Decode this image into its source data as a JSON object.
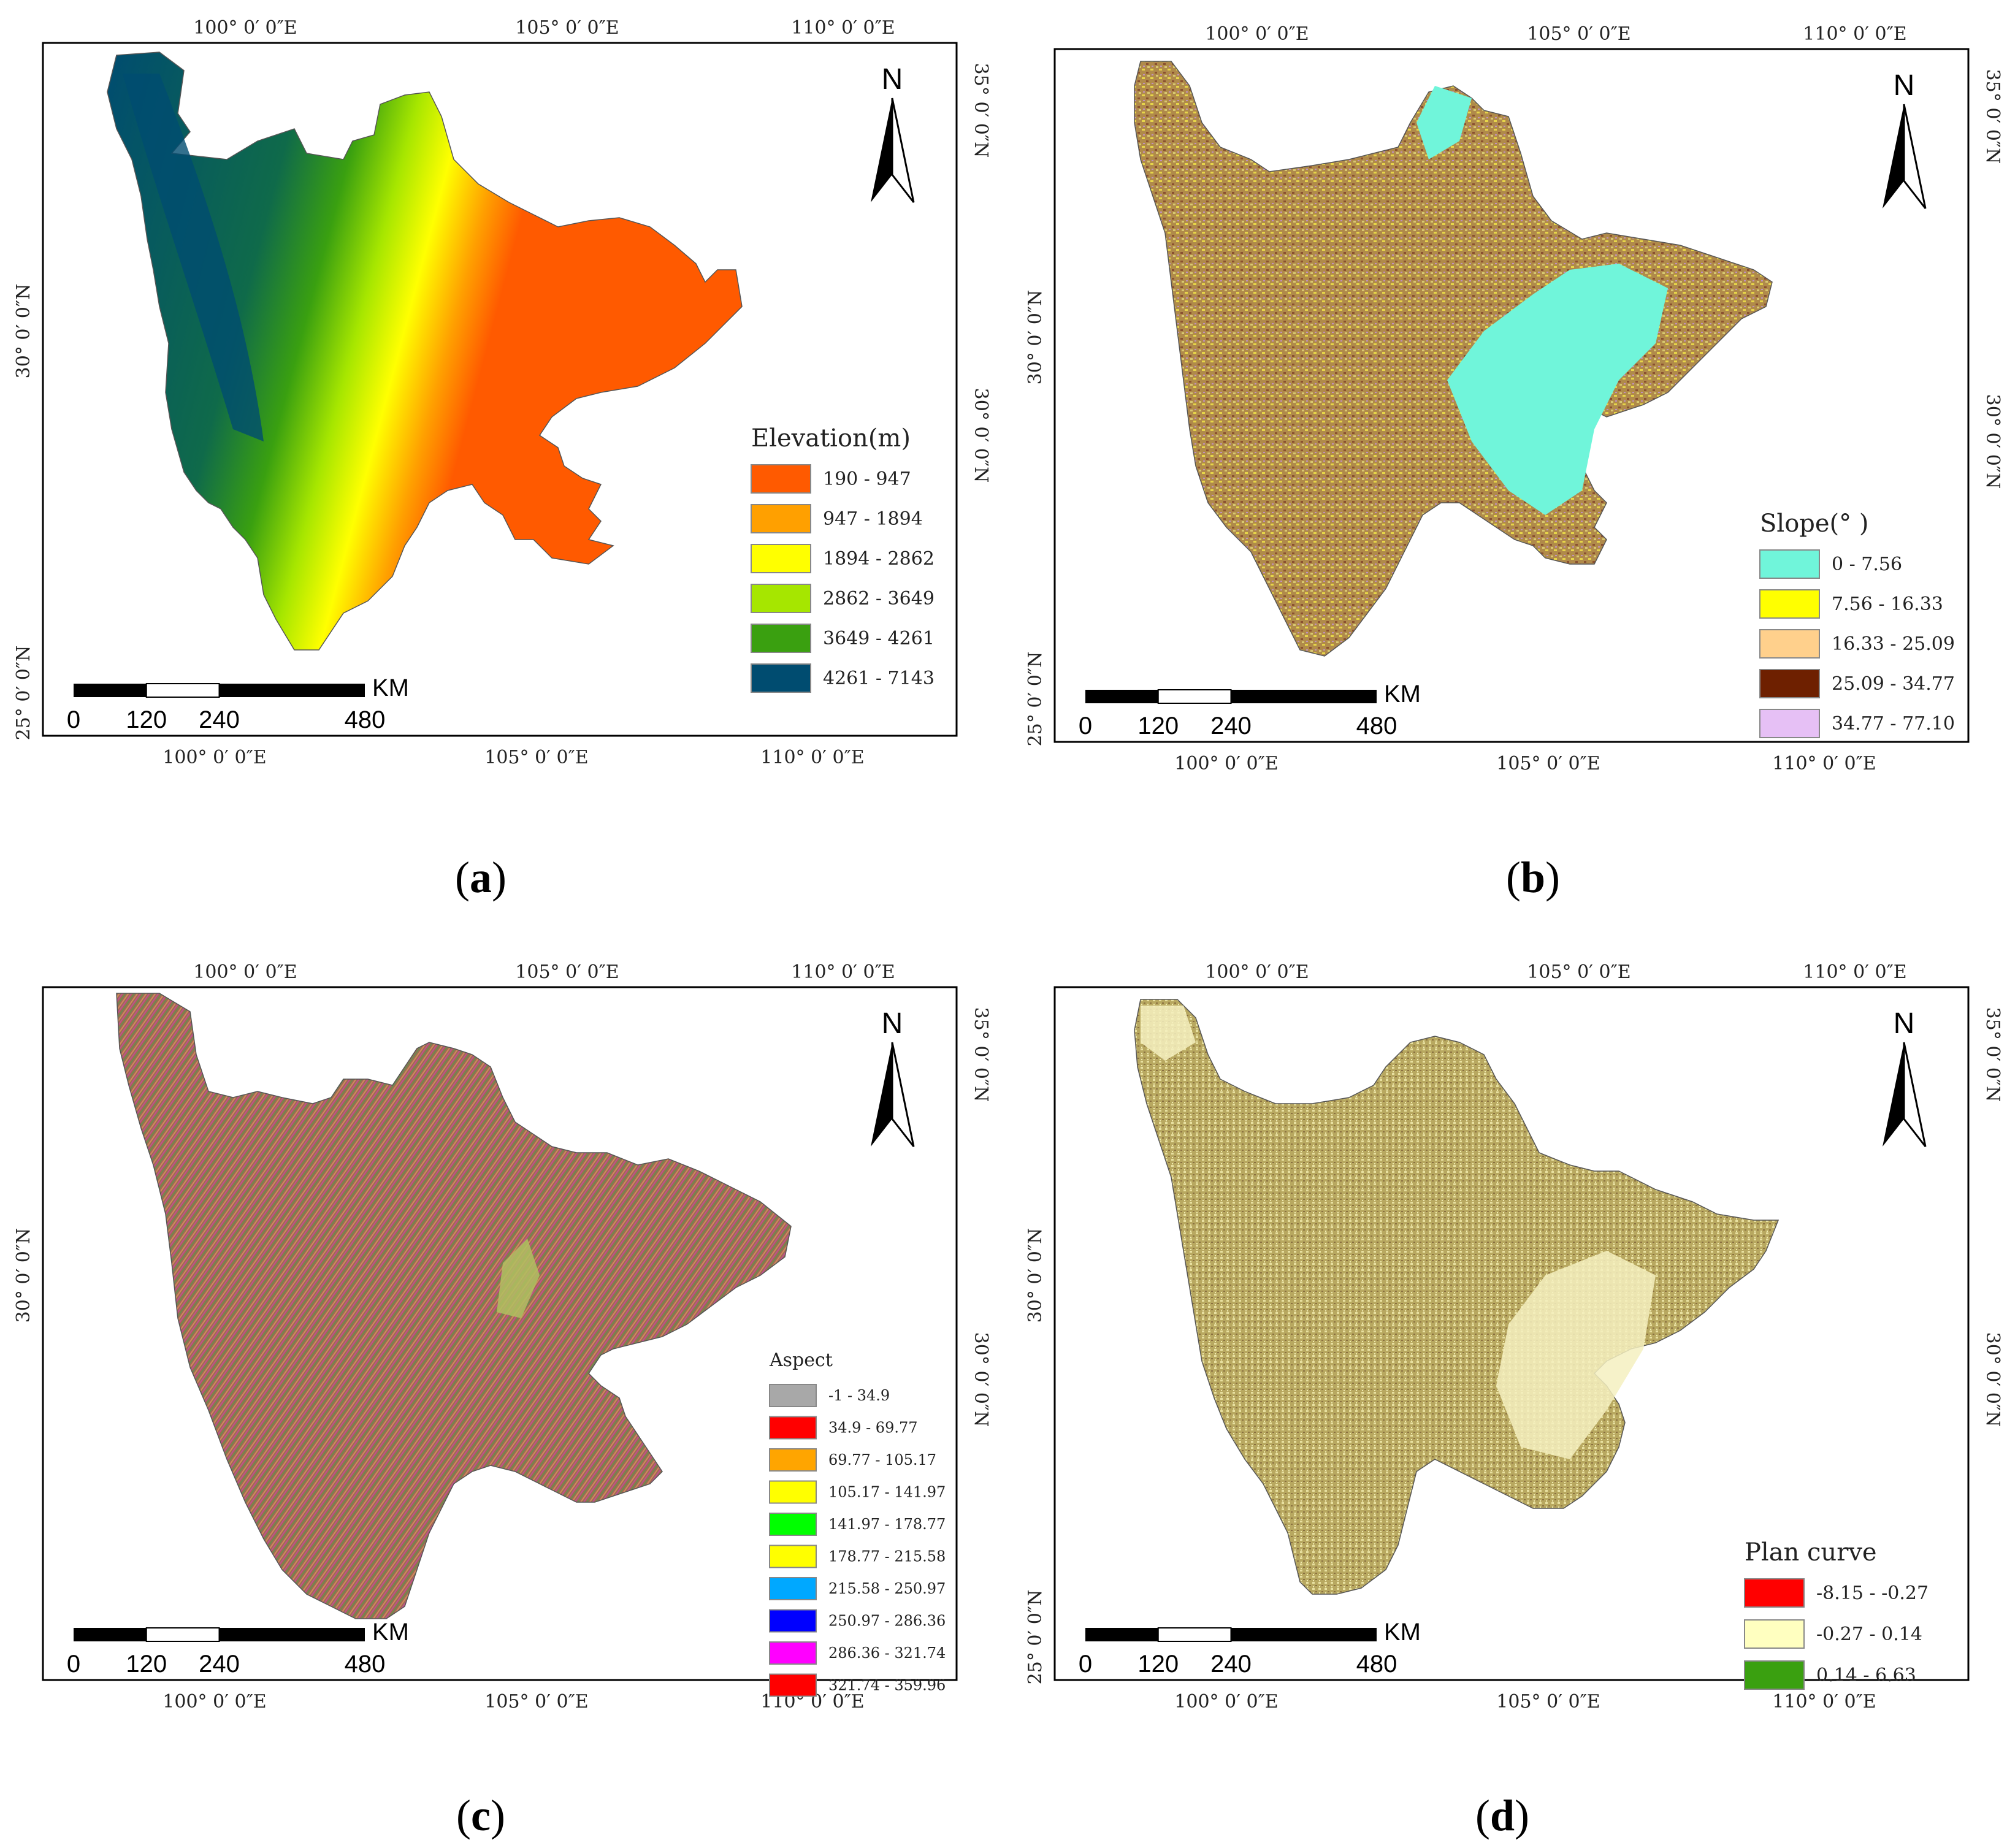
{
  "panels": [
    {
      "id": "a",
      "caption": "a",
      "top_lon": [
        "100° 0′ 0″E",
        "105° 0′ 0″E",
        "110° 0′ 0″E"
      ],
      "bottom_lon": [
        "100° 0′ 0″E",
        "105° 0′ 0″E",
        "110° 0′ 0″E"
      ],
      "left_lat": [
        "30° 0′ 0″N",
        "25° 0′ 0″N"
      ],
      "right_lat": [
        "35° 0′ 0″N",
        "30° 0′ 0″N"
      ],
      "north": "N",
      "scale_unit": "KM",
      "scale_ticks": [
        "0",
        "120",
        "240",
        "480"
      ],
      "legend_title": "Elevation(m)",
      "legend": [
        {
          "label": "190 - 947",
          "color": "#ff5a00"
        },
        {
          "label": "947 - 1894",
          "color": "#ffa000"
        },
        {
          "label": "1894 - 2862",
          "color": "#ffff00"
        },
        {
          "label": "2862 - 3649",
          "color": "#a6e600"
        },
        {
          "label": "3649 - 4261",
          "color": "#3aa010"
        },
        {
          "label": "4261 - 7143",
          "color": "#004c70"
        }
      ]
    },
    {
      "id": "b",
      "caption": "b",
      "top_lon": [
        "100° 0′ 0″E",
        "105° 0′ 0″E",
        "110° 0′ 0″E"
      ],
      "bottom_lon": [
        "100° 0′ 0″E",
        "105° 0′ 0″E",
        "110° 0′ 0″E"
      ],
      "left_lat": [
        "30° 0′ 0″N",
        "25° 0′ 0″N"
      ],
      "right_lat": [
        "35° 0′ 0″N",
        "30° 0′ 0″N"
      ],
      "north": "N",
      "scale_unit": "KM",
      "scale_ticks": [
        "0",
        "120",
        "240",
        "480"
      ],
      "legend_title": "Slope(°  )",
      "legend": [
        {
          "label": "0 - 7.56",
          "color": "#70f5da"
        },
        {
          "label": "7.56 - 16.33",
          "color": "#ffff00"
        },
        {
          "label": "16.33 - 25.09",
          "color": "#ffd08c"
        },
        {
          "label": "25.09 - 34.77",
          "color": "#6e2000"
        },
        {
          "label": "34.77 - 77.10",
          "color": "#e6c0f5"
        }
      ]
    },
    {
      "id": "c",
      "caption": "c",
      "top_lon": [
        "100° 0′ 0″E",
        "105° 0′ 0″E",
        "110° 0′ 0″E"
      ],
      "bottom_lon": [
        "100° 0′ 0″E",
        "105° 0′ 0″E",
        "110° 0′ 0″E"
      ],
      "left_lat": [
        "30° 0′ 0″N"
      ],
      "right_lat": [
        "35° 0′ 0″N",
        "30° 0′ 0″N"
      ],
      "north": "N",
      "scale_unit": "KM",
      "scale_ticks": [
        "0",
        "120",
        "240",
        "480"
      ],
      "legend_title": "Aspect",
      "legend": [
        {
          "label": "-1 - 34.9",
          "color": "#a8a8a8"
        },
        {
          "label": "34.9 - 69.77",
          "color": "#ff0000"
        },
        {
          "label": "69.77 - 105.17",
          "color": "#ffa500"
        },
        {
          "label": "105.17 - 141.97",
          "color": "#ffff00"
        },
        {
          "label": "141.97 - 178.77",
          "color": "#00ff00"
        },
        {
          "label": "178.77 - 215.58",
          "color": "#ffff00"
        },
        {
          "label": "215.58 - 250.97",
          "color": "#00a8ff"
        },
        {
          "label": "250.97 - 286.36",
          "color": "#0000ff"
        },
        {
          "label": "286.36 - 321.74",
          "color": "#ff00ff"
        },
        {
          "label": "321.74 - 359.96",
          "color": "#ff0000"
        }
      ]
    },
    {
      "id": "d",
      "caption": "d",
      "top_lon": [
        "100° 0′ 0″E",
        "105° 0′ 0″E",
        "110° 0′ 0″E"
      ],
      "bottom_lon": [
        "100° 0′ 0″E",
        "105° 0′ 0″E",
        "110° 0′ 0″E"
      ],
      "left_lat": [
        "30° 0′ 0″N",
        "25° 0′ 0″N"
      ],
      "right_lat": [
        "35° 0′ 0″N",
        "30° 0′ 0″N"
      ],
      "north": "N",
      "scale_unit": "KM",
      "scale_ticks": [
        "0",
        "120",
        "240",
        "480"
      ],
      "legend_title": "Plan curve",
      "legend": [
        {
          "label": "-8.15 - -0.27",
          "color": "#ff0000"
        },
        {
          "label": "-0.27 - 0.14",
          "color": "#ffffc0"
        },
        {
          "label": "0.14 - 6.63",
          "color": "#3aa010"
        }
      ]
    }
  ]
}
